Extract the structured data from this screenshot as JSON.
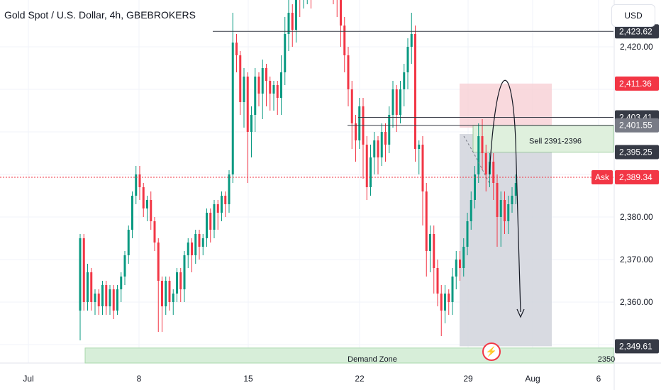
{
  "header": {
    "title": "Gold Spot / U.S. Dollar, 4h, GBEBROKERS",
    "currency": "USD"
  },
  "colors": {
    "bull": "#089981",
    "bear": "#f23645",
    "text": "#131722",
    "grid": "#f0f3fa",
    "level_label_dark": "#363a45",
    "level_label_gray": "#787b86",
    "ask_red": "#f23645",
    "demand_fill": "#d7eed9",
    "sell_fill": "#dff0dd",
    "stop_fill": "#f7c9cf",
    "target_fill": "#d1d4dc"
  },
  "price_axis": {
    "ticks": [
      "2,420.00",
      "2,380.00",
      "2,370.00",
      "2,360.00"
    ],
    "tick_values": [
      2420,
      2380,
      2370,
      2360
    ]
  },
  "time_axis": {
    "labels": [
      "Jul",
      "8",
      "15",
      "22",
      "29",
      "Aug",
      "6"
    ]
  },
  "price_labels": [
    {
      "text": "2,423.62",
      "value": 2423.62,
      "style": "dark"
    },
    {
      "text": "2,411.36",
      "value": 2411.36,
      "style": "red"
    },
    {
      "text": "2,403.41",
      "value": 2403.41,
      "style": "dark"
    },
    {
      "text": "2,401.55",
      "value": 2401.55,
      "style": "gray"
    },
    {
      "text": "2,395.25",
      "value": 2395.25,
      "style": "dark"
    },
    {
      "text": "2,389.34",
      "value": 2389.34,
      "style": "red"
    },
    {
      "text": "2,349.61",
      "value": 2349.61,
      "style": "dark"
    }
  ],
  "ask_label": "Ask",
  "annotations": {
    "sell_zone": "Sell 2391-2396",
    "demand_zone": "Demand Zone",
    "demand_right": "2350"
  },
  "chart_data": {
    "type": "candlestick",
    "title": "Gold Spot / U.S. Dollar, 4h, GBEBROKERS",
    "ylim": [
      2345,
      2435
    ],
    "candles": [
      [
        2358,
        2375,
        2351,
        2376
      ],
      [
        2375,
        2360,
        2358,
        2376
      ],
      [
        2360,
        2367,
        2358,
        2369
      ],
      [
        2367,
        2360,
        2358,
        2368
      ],
      [
        2360,
        2362,
        2357,
        2363
      ],
      [
        2362,
        2359,
        2357,
        2363
      ],
      [
        2359,
        2364,
        2357,
        2365
      ],
      [
        2364,
        2359,
        2357,
        2365
      ],
      [
        2359,
        2363,
        2357,
        2364
      ],
      [
        2363,
        2358,
        2356,
        2364
      ],
      [
        2358,
        2363,
        2357,
        2364
      ],
      [
        2363,
        2366,
        2360,
        2367
      ],
      [
        2366,
        2371,
        2364,
        2372
      ],
      [
        2371,
        2377,
        2369,
        2378
      ],
      [
        2377,
        2385,
        2375,
        2386
      ],
      [
        2385,
        2390,
        2383,
        2392
      ],
      [
        2390,
        2387,
        2384,
        2392
      ],
      [
        2387,
        2382,
        2380,
        2388
      ],
      [
        2382,
        2384,
        2379,
        2385
      ],
      [
        2384,
        2379,
        2377,
        2386
      ],
      [
        2379,
        2374,
        2372,
        2380
      ],
      [
        2374,
        2365,
        2353,
        2375
      ],
      [
        2365,
        2359,
        2353,
        2366
      ],
      [
        2359,
        2365,
        2357,
        2366
      ],
      [
        2365,
        2360,
        2358,
        2366
      ],
      [
        2360,
        2362,
        2357,
        2363
      ],
      [
        2362,
        2367,
        2360,
        2368
      ],
      [
        2367,
        2363,
        2360,
        2368
      ],
      [
        2363,
        2371,
        2360,
        2372
      ],
      [
        2371,
        2374,
        2368,
        2375
      ],
      [
        2374,
        2371,
        2367,
        2375
      ],
      [
        2371,
        2376,
        2369,
        2377
      ],
      [
        2376,
        2373,
        2370,
        2377
      ],
      [
        2373,
        2375,
        2371,
        2376
      ],
      [
        2375,
        2381,
        2373,
        2382
      ],
      [
        2381,
        2377,
        2374,
        2382
      ],
      [
        2377,
        2383,
        2375,
        2384
      ],
      [
        2383,
        2381,
        2377,
        2384
      ],
      [
        2381,
        2385,
        2379,
        2386
      ],
      [
        2385,
        2383,
        2380,
        2386
      ],
      [
        2383,
        2390,
        2381,
        2391
      ],
      [
        2390,
        2421,
        2388,
        2428
      ],
      [
        2421,
        2418,
        2414,
        2423
      ],
      [
        2418,
        2407,
        2404,
        2419
      ],
      [
        2407,
        2413,
        2401,
        2415
      ],
      [
        2413,
        2400,
        2388,
        2414
      ],
      [
        2400,
        2404,
        2394,
        2406
      ],
      [
        2404,
        2413,
        2400,
        2415
      ],
      [
        2413,
        2409,
        2406,
        2414
      ],
      [
        2409,
        2415,
        2403,
        2417
      ],
      [
        2415,
        2412,
        2406,
        2416
      ],
      [
        2412,
        2409,
        2405,
        2413
      ],
      [
        2409,
        2411,
        2405,
        2412
      ],
      [
        2411,
        2408,
        2404,
        2412
      ],
      [
        2408,
        2414,
        2404,
        2418
      ],
      [
        2414,
        2423,
        2411,
        2427
      ],
      [
        2423,
        2428,
        2419,
        2431
      ],
      [
        2428,
        2424,
        2420,
        2430
      ],
      [
        2424,
        2434,
        2421,
        2436
      ],
      [
        2434,
        2431,
        2427,
        2436
      ],
      [
        2431,
        2434,
        2429,
        2436
      ],
      [
        2434,
        2437,
        2430,
        2438
      ],
      [
        2437,
        2433,
        2429,
        2438
      ],
      [
        2433,
        2436,
        2431,
        2437
      ],
      [
        2436,
        2434,
        2431,
        2437
      ],
      [
        2434,
        2436,
        2432,
        2438
      ],
      [
        2436,
        2435,
        2431,
        2437
      ],
      [
        2435,
        2437,
        2432,
        2439
      ],
      [
        2437,
        2434,
        2430,
        2439
      ],
      [
        2434,
        2432,
        2427,
        2436
      ],
      [
        2432,
        2425,
        2420,
        2434
      ],
      [
        2425,
        2418,
        2414,
        2427
      ],
      [
        2418,
        2410,
        2406,
        2420
      ],
      [
        2410,
        2402,
        2396,
        2412
      ],
      [
        2402,
        2398,
        2393,
        2404
      ],
      [
        2398,
        2406,
        2396,
        2408
      ],
      [
        2406,
        2397,
        2389,
        2408
      ],
      [
        2397,
        2387,
        2384,
        2399
      ],
      [
        2387,
        2394,
        2385,
        2397
      ],
      [
        2394,
        2398,
        2390,
        2400
      ],
      [
        2398,
        2394,
        2390,
        2399
      ],
      [
        2394,
        2400,
        2392,
        2402
      ],
      [
        2400,
        2397,
        2393,
        2402
      ],
      [
        2397,
        2404,
        2395,
        2406
      ],
      [
        2404,
        2410,
        2401,
        2412
      ],
      [
        2410,
        2404,
        2400,
        2411
      ],
      [
        2404,
        2410,
        2402,
        2412
      ],
      [
        2410,
        2414,
        2406,
        2416
      ],
      [
        2414,
        2420,
        2410,
        2422
      ],
      [
        2420,
        2423,
        2416,
        2428
      ],
      [
        2423,
        2396,
        2393,
        2425
      ],
      [
        2396,
        2397,
        2390,
        2398
      ],
      [
        2397,
        2386,
        2378,
        2399
      ],
      [
        2386,
        2372,
        2366,
        2388
      ],
      [
        2372,
        2376,
        2367,
        2378
      ],
      [
        2376,
        2368,
        2362,
        2378
      ],
      [
        2368,
        2362,
        2359,
        2370
      ],
      [
        2362,
        2358,
        2352,
        2364
      ],
      [
        2358,
        2362,
        2355,
        2364
      ],
      [
        2362,
        2360,
        2357,
        2363
      ],
      [
        2360,
        2366,
        2357,
        2368
      ],
      [
        2366,
        2370,
        2363,
        2372
      ],
      [
        2370,
        2368,
        2365,
        2372
      ],
      [
        2368,
        2373,
        2366,
        2375
      ],
      [
        2373,
        2379,
        2371,
        2381
      ],
      [
        2379,
        2384,
        2377,
        2386
      ],
      [
        2384,
        2390,
        2382,
        2392
      ],
      [
        2390,
        2399,
        2388,
        2402
      ],
      [
        2399,
        2395,
        2391,
        2403
      ],
      [
        2395,
        2390,
        2386,
        2397
      ],
      [
        2390,
        2393,
        2387,
        2395
      ],
      [
        2393,
        2388,
        2384,
        2395
      ],
      [
        2388,
        2380,
        2373,
        2390
      ],
      [
        2380,
        2384,
        2373,
        2386
      ],
      [
        2384,
        2379,
        2376,
        2386
      ],
      [
        2379,
        2383,
        2376,
        2385
      ],
      [
        2383,
        2385,
        2381,
        2387
      ],
      [
        2385,
        2388,
        2383,
        2390
      ]
    ],
    "levels": [
      2423.62,
      2403.41,
      2401.55
    ],
    "current_price": 2389.34,
    "trade": {
      "entry": [
        2391,
        2396
      ],
      "stop": 2411.36,
      "target": 2349.61
    },
    "demand_zone": {
      "label": "Demand Zone",
      "price": 2350
    },
    "x_labels": [
      "Jul",
      "8",
      "15",
      "22",
      "29",
      "Aug",
      "6"
    ]
  }
}
